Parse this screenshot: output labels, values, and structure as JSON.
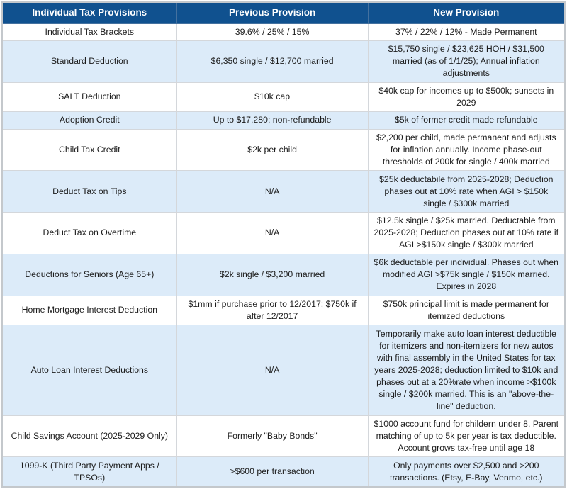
{
  "colors": {
    "header_bg": "#10518F",
    "header_text": "#FFFFFF",
    "header_divider": "#44719F",
    "row_bg": "#FFFFFF",
    "row_alt_bg": "#DCEBF9",
    "grid_line": "#D4D7DB",
    "outer_border": "#C4C8CC",
    "text": "#1C1C1C"
  },
  "table": {
    "columns": [
      "Individual Tax Provisions",
      "Previous Provision",
      "New Provision"
    ],
    "rows": [
      {
        "provision": "Individual Tax Brackets",
        "previous": "39.6% / 25% / 15%",
        "new": "37% / 22% / 12% - Made Permanent"
      },
      {
        "provision": "Standard Deduction",
        "previous": "$6,350 single / $12,700 married",
        "new": "$15,750 single / $23,625 HOH / $31,500 married (as of 1/1/25); Annual inflation adjustments"
      },
      {
        "provision": "SALT Deduction",
        "previous": "$10k cap",
        "new": "$40k cap for incomes up to $500k; sunsets in 2029"
      },
      {
        "provision": "Adoption Credit",
        "previous": "Up to $17,280; non-refundable",
        "new": "$5k of former credit made refundable"
      },
      {
        "provision": "Child Tax Credit",
        "previous": "$2k per child",
        "new": "$2,200 per child, made permanent and adjusts for inflation annually. Income phase-out thresholds of 200k for single / 400k married"
      },
      {
        "provision": "Deduct Tax on Tips",
        "previous": "N/A",
        "new": "$25k deductabile from 2025-2028; Deduction phases out at 10% rate when AGI > $150k single / $300k married"
      },
      {
        "provision": "Deduct Tax on Overtime",
        "previous": "N/A",
        "new": "$12.5k single / $25k married. Deductable from 2025-2028; Deduction phases out at 10% rate if AGI >$150k single / $300k married"
      },
      {
        "provision": "Deductions for Seniors (Age 65+)",
        "previous": "$2k single / $3,200 married",
        "new": "$6k deductable per individual. Phases out when modified AGI >$75k single / $150k married. Expires in 2028"
      },
      {
        "provision": "Home Mortgage Interest Deduction",
        "previous": "$1mm if purchase prior to 12/2017; $750k if after 12/2017",
        "new": "$750k principal limit is made permanent for itemized deductions"
      },
      {
        "provision": "Auto Loan Interest Deductions",
        "previous": "N/A",
        "new": "Temporarily make auto loan interest deductible for itemizers and non-itemizers for new autos with final assembly in the United States for tax years 2025-2028; deduction limited to $10k and phases out at a 20%rate when income >$100k single / $200k married. This is an \"above-the-line\" deduction."
      },
      {
        "provision": "Child Savings Account (2025-2029 Only)",
        "previous": "Formerly \"Baby Bonds\"",
        "new": "$1000 account fund for childern under 8. Parent matching of up to 5k per year is tax deductible. Account grows tax-free until age 18"
      },
      {
        "provision": "1099-K (Third Party Payment Apps / TPSOs)",
        "previous": ">$600 per transaction",
        "new": "Only payments over $2,500 and >200 transactions. (Etsy, E-Bay, Venmo, etc.)"
      }
    ]
  }
}
